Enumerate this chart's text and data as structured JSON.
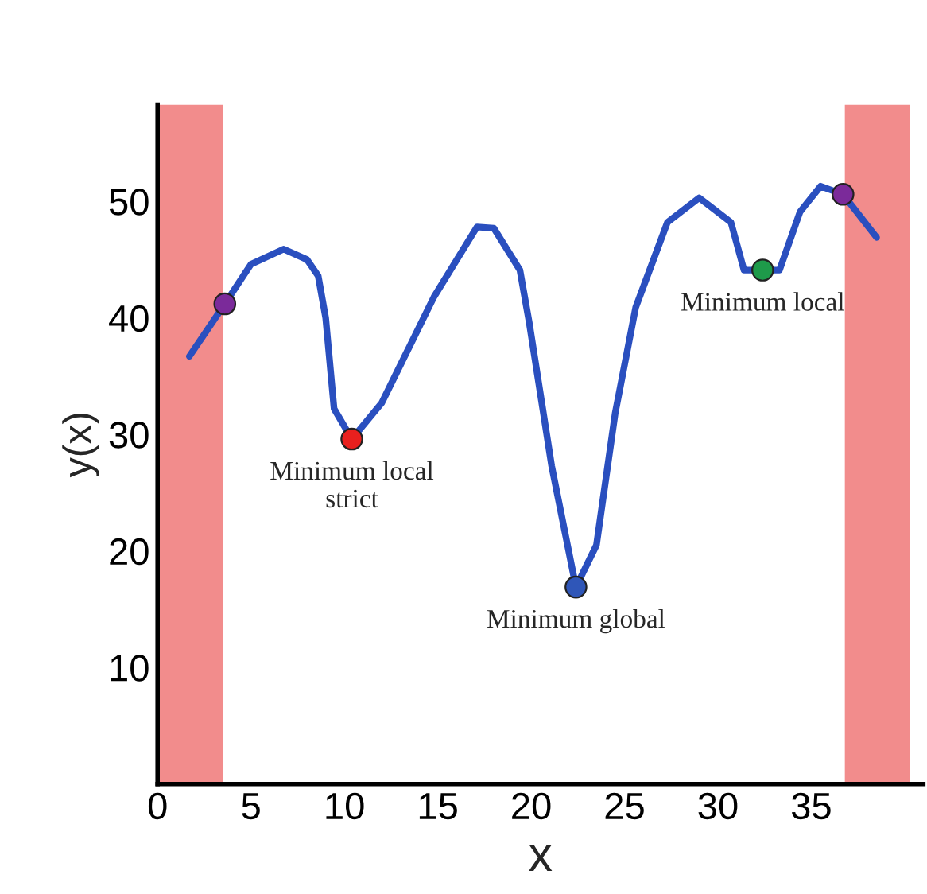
{
  "chart_data": {
    "type": "line",
    "xlabel": "x",
    "ylabel": "y(x)",
    "xlim": [
      0,
      41
    ],
    "ylim": [
      0,
      58.3
    ],
    "xticks": [
      0,
      5,
      10,
      15,
      20,
      25,
      30,
      35
    ],
    "yticks": [
      10,
      20,
      30,
      40,
      50
    ],
    "bands": [
      {
        "axis": "x",
        "from": 0,
        "to": 3.5,
        "color": "#f28c8c"
      },
      {
        "axis": "x",
        "from": 36.8,
        "to": 40.3,
        "color": "#f28c8c"
      }
    ],
    "series": [
      {
        "color": "#2a4fbf",
        "line_style": "solid",
        "x": [
          1.7,
          3.6,
          5.0,
          6.75,
          8.0,
          8.6,
          9.0,
          9.45,
          10.4,
          12.0,
          14.8,
          17.1,
          18.0,
          19.4,
          19.9,
          20.3,
          21.1,
          22.4,
          23.5,
          24.5,
          25.6,
          27.3,
          29.0,
          30.7,
          31.4,
          32.4,
          33.3,
          34.4,
          35.5,
          36.7,
          38.5
        ],
        "values": [
          36.7,
          41.2,
          44.6,
          45.9,
          45.0,
          43.6,
          40.0,
          32.2,
          29.6,
          32.7,
          41.8,
          47.8,
          47.7,
          44.1,
          39.6,
          35.5,
          27.3,
          16.9,
          20.5,
          31.8,
          40.9,
          48.2,
          50.3,
          48.2,
          44.1,
          44.1,
          44.1,
          49.1,
          51.3,
          50.6,
          46.9
        ]
      },
      {
        "type": "scatter",
        "marker": "circle",
        "x": [
          3.6,
          10.4,
          22.4,
          32.4,
          36.7
        ],
        "values": [
          41.2,
          29.6,
          16.9,
          44.1,
          50.6
        ],
        "colors": [
          "#7b2a9a",
          "#e8201e",
          "#2f56b8",
          "#1e9a4a",
          "#7b2a9a"
        ]
      }
    ],
    "annotations": [
      {
        "text": "Minimum local\nstrict",
        "x": 10.4,
        "y": 29.6
      },
      {
        "text": "Minimum global",
        "x": 22.4,
        "y": 16.9
      },
      {
        "text": "Minimum local",
        "x": 32.4,
        "y": 44.1
      }
    ]
  }
}
